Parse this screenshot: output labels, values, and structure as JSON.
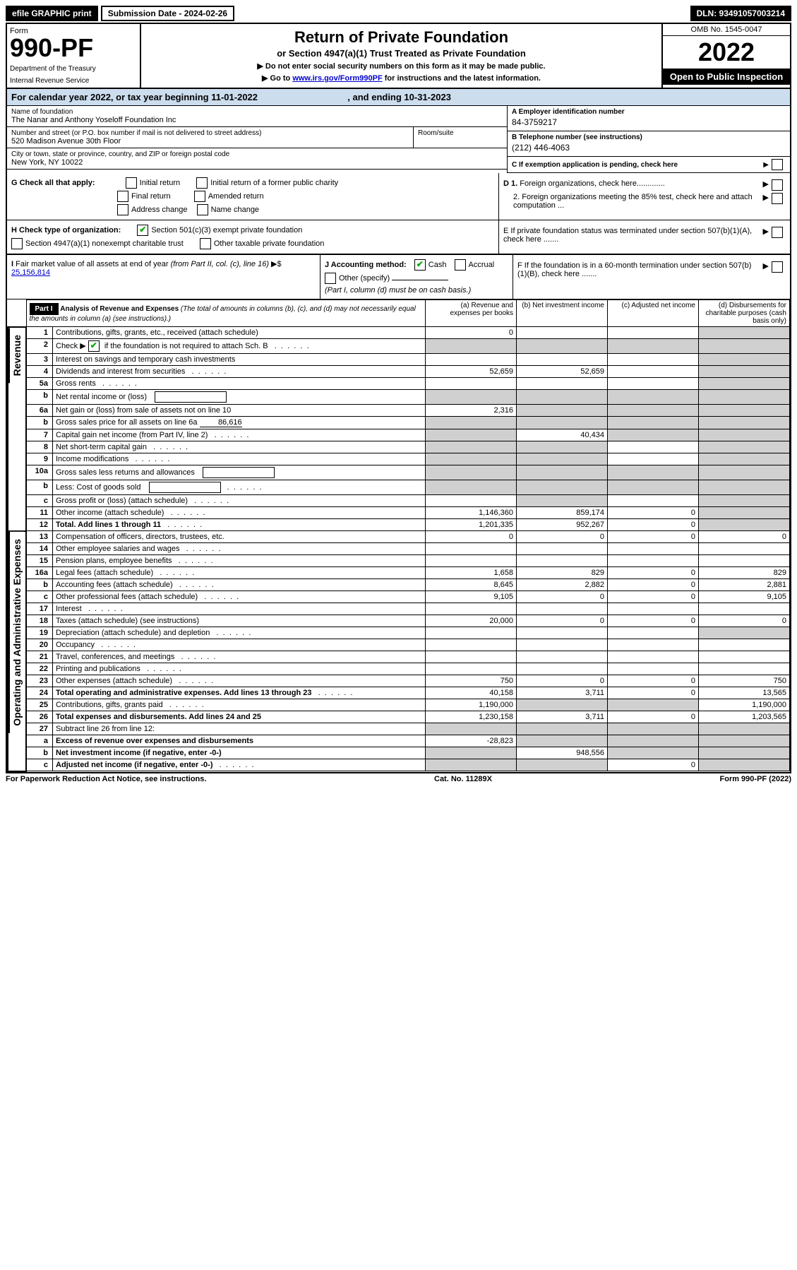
{
  "topbar": {
    "efile": "efile GRAPHIC print",
    "submission_label": "Submission Date - 2024-02-26",
    "dln": "DLN: 93491057003214"
  },
  "header": {
    "form": "Form",
    "form_num": "990-PF",
    "dept1": "Department of the Treasury",
    "dept2": "Internal Revenue Service",
    "title": "Return of Private Foundation",
    "sub1": "or Section 4947(a)(1) Trust Treated as Private Foundation",
    "sub2a": "▶ Do not enter social security numbers on this form as it may be made public.",
    "sub2b": "▶ Go to ",
    "sub2b_link": "www.irs.gov/Form990PF",
    "sub2c": " for instructions and the latest information.",
    "omb": "OMB No. 1545-0047",
    "year": "2022",
    "open_pub": "Open to Public Inspection"
  },
  "calyear": {
    "text1": "For calendar year 2022, or tax year beginning 11-01-2022",
    "text2": ", and ending 10-31-2023"
  },
  "info": {
    "name_label": "Name of foundation",
    "name": "The Nanar and Anthony Yoseloff Foundation Inc",
    "addr_label": "Number and street (or P.O. box number if mail is not delivered to street address)",
    "addr": "520 Madison Avenue 30th Floor",
    "room_label": "Room/suite",
    "city_label": "City or town, state or province, country, and ZIP or foreign postal code",
    "city": "New York, NY  10022",
    "ein_label": "A Employer identification number",
    "ein": "84-3759217",
    "tel_label": "B Telephone number (see instructions)",
    "tel": "(212) 446-4063",
    "c_label": "C If exemption application is pending, check here"
  },
  "checks": {
    "g_label": "G Check all that apply:",
    "g_opts": [
      "Initial return",
      "Initial return of a former public charity",
      "Final return",
      "Amended return",
      "Address change",
      "Name change"
    ],
    "h_label": "H Check type of organization:",
    "h1": "Section 501(c)(3) exempt private foundation",
    "h2": "Section 4947(a)(1) nonexempt charitable trust",
    "h3": "Other taxable private foundation",
    "i_label": "I Fair market value of all assets at end of year (from Part II, col. (c), line 16) ▶$ ",
    "i_val": "25,156,814",
    "j_label": "J Accounting method:",
    "j_cash": "Cash",
    "j_accrual": "Accrual",
    "j_other": "Other (specify)",
    "j_note": "(Part I, column (d) must be on cash basis.)",
    "d1": "D 1. Foreign organizations, check here.............",
    "d2": "2. Foreign organizations meeting the 85% test, check here and attach computation ...",
    "e": "E  If private foundation status was terminated under section 507(b)(1)(A), check here .......",
    "f": "F  If the foundation is in a 60-month termination under section 507(b)(1)(B), check here .......",
    "arrow": "▶"
  },
  "part1": {
    "label": "Part I",
    "title": "Analysis of Revenue and Expenses",
    "title_note": " (The total of amounts in columns (b), (c), and (d) may not necessarily equal the amounts in column (a) (see instructions).)",
    "col_a": "(a)    Revenue and expenses per books",
    "col_b": "(b)    Net investment income",
    "col_c": "(c)   Adjusted net income",
    "col_d": "(d)   Disbursements for charitable purposes (cash basis only)"
  },
  "side_labels": {
    "revenue": "Revenue",
    "expenses": "Operating and Administrative Expenses"
  },
  "rows": [
    {
      "n": "1",
      "desc": "Contributions, gifts, grants, etc., received (attach schedule)",
      "a": "0",
      "b": "",
      "c": "",
      "d": "",
      "shade": [
        "d"
      ]
    },
    {
      "n": "2",
      "desc": "Check ▶ ☑ if the foundation is not required to attach Sch. B",
      "a": "",
      "b": "",
      "c": "",
      "d": "",
      "shade": [
        "a",
        "b",
        "c",
        "d"
      ],
      "checkgreen": true,
      "dots": true
    },
    {
      "n": "3",
      "desc": "Interest on savings and temporary cash investments",
      "a": "",
      "b": "",
      "c": "",
      "d": "",
      "shade": [
        "d"
      ]
    },
    {
      "n": "4",
      "desc": "Dividends and interest from securities",
      "a": "52,659",
      "b": "52,659",
      "c": "",
      "d": "",
      "shade": [
        "d"
      ],
      "dots": true
    },
    {
      "n": "5a",
      "desc": "Gross rents",
      "a": "",
      "b": "",
      "c": "",
      "d": "",
      "shade": [
        "d"
      ],
      "dots": true
    },
    {
      "n": "b",
      "desc": "Net rental income or (loss)",
      "a": "",
      "b": "",
      "c": "",
      "d": "",
      "shade": [
        "a",
        "b",
        "c",
        "d"
      ],
      "inline_box": true
    },
    {
      "n": "6a",
      "desc": "Net gain or (loss) from sale of assets not on line 10",
      "a": "2,316",
      "b": "",
      "c": "",
      "d": "",
      "shade": [
        "b",
        "c",
        "d"
      ]
    },
    {
      "n": "b",
      "desc": "Gross sales price for all assets on line 6a",
      "a": "",
      "b": "",
      "c": "",
      "d": "",
      "shade": [
        "a",
        "b",
        "c",
        "d"
      ],
      "inline_val": "86,616"
    },
    {
      "n": "7",
      "desc": "Capital gain net income (from Part IV, line 2)",
      "a": "",
      "b": "40,434",
      "c": "",
      "d": "",
      "shade": [
        "a",
        "c",
        "d"
      ],
      "dots": true
    },
    {
      "n": "8",
      "desc": "Net short-term capital gain",
      "a": "",
      "b": "",
      "c": "",
      "d": "",
      "shade": [
        "a",
        "b",
        "d"
      ],
      "dots": true
    },
    {
      "n": "9",
      "desc": "Income modifications",
      "a": "",
      "b": "",
      "c": "",
      "d": "",
      "shade": [
        "a",
        "b",
        "d"
      ],
      "dots": true
    },
    {
      "n": "10a",
      "desc": "Gross sales less returns and allowances",
      "a": "",
      "b": "",
      "c": "",
      "d": "",
      "shade": [
        "a",
        "b",
        "c",
        "d"
      ],
      "inline_box": true
    },
    {
      "n": "b",
      "desc": "Less: Cost of goods sold",
      "a": "",
      "b": "",
      "c": "",
      "d": "",
      "shade": [
        "a",
        "b",
        "c",
        "d"
      ],
      "inline_box": true,
      "dots": true
    },
    {
      "n": "c",
      "desc": "Gross profit or (loss) (attach schedule)",
      "a": "",
      "b": "",
      "c": "",
      "d": "",
      "shade": [
        "b",
        "d"
      ],
      "dots": true
    },
    {
      "n": "11",
      "desc": "Other income (attach schedule)",
      "a": "1,146,360",
      "b": "859,174",
      "c": "0",
      "d": "",
      "shade": [
        "d"
      ],
      "dots": true
    },
    {
      "n": "12",
      "desc": "Total. Add lines 1 through 11",
      "a": "1,201,335",
      "b": "952,267",
      "c": "0",
      "d": "",
      "shade": [
        "d"
      ],
      "bold": true,
      "dots": true
    }
  ],
  "exp_rows": [
    {
      "n": "13",
      "desc": "Compensation of officers, directors, trustees, etc.",
      "a": "0",
      "b": "0",
      "c": "0",
      "d": "0"
    },
    {
      "n": "14",
      "desc": "Other employee salaries and wages",
      "a": "",
      "b": "",
      "c": "",
      "d": "",
      "dots": true
    },
    {
      "n": "15",
      "desc": "Pension plans, employee benefits",
      "a": "",
      "b": "",
      "c": "",
      "d": "",
      "dots": true
    },
    {
      "n": "16a",
      "desc": "Legal fees (attach schedule)",
      "a": "1,658",
      "b": "829",
      "c": "0",
      "d": "829",
      "dots": true
    },
    {
      "n": "b",
      "desc": "Accounting fees (attach schedule)",
      "a": "8,645",
      "b": "2,882",
      "c": "0",
      "d": "2,881",
      "dots": true
    },
    {
      "n": "c",
      "desc": "Other professional fees (attach schedule)",
      "a": "9,105",
      "b": "0",
      "c": "0",
      "d": "9,105",
      "dots": true
    },
    {
      "n": "17",
      "desc": "Interest",
      "a": "",
      "b": "",
      "c": "",
      "d": "",
      "dots": true
    },
    {
      "n": "18",
      "desc": "Taxes (attach schedule) (see instructions)",
      "a": "20,000",
      "b": "0",
      "c": "0",
      "d": "0"
    },
    {
      "n": "19",
      "desc": "Depreciation (attach schedule) and depletion",
      "a": "",
      "b": "",
      "c": "",
      "d": "",
      "shade": [
        "d"
      ],
      "dots": true
    },
    {
      "n": "20",
      "desc": "Occupancy",
      "a": "",
      "b": "",
      "c": "",
      "d": "",
      "dots": true
    },
    {
      "n": "21",
      "desc": "Travel, conferences, and meetings",
      "a": "",
      "b": "",
      "c": "",
      "d": "",
      "dots": true
    },
    {
      "n": "22",
      "desc": "Printing and publications",
      "a": "",
      "b": "",
      "c": "",
      "d": "",
      "dots": true
    },
    {
      "n": "23",
      "desc": "Other expenses (attach schedule)",
      "a": "750",
      "b": "0",
      "c": "0",
      "d": "750",
      "dots": true
    },
    {
      "n": "24",
      "desc": "Total operating and administrative expenses. Add lines 13 through 23",
      "a": "40,158",
      "b": "3,711",
      "c": "0",
      "d": "13,565",
      "bold": true,
      "dots": true
    },
    {
      "n": "25",
      "desc": "Contributions, gifts, grants paid",
      "a": "1,190,000",
      "b": "",
      "c": "",
      "d": "1,190,000",
      "shade": [
        "b",
        "c"
      ],
      "dots": true
    },
    {
      "n": "26",
      "desc": "Total expenses and disbursements. Add lines 24 and 25",
      "a": "1,230,158",
      "b": "3,711",
      "c": "0",
      "d": "1,203,565",
      "bold": true
    },
    {
      "n": "27",
      "desc": "Subtract line 26 from line 12:",
      "a": "",
      "b": "",
      "c": "",
      "d": "",
      "shade": [
        "a",
        "b",
        "c",
        "d"
      ]
    },
    {
      "n": "a",
      "desc": "Excess of revenue over expenses and disbursements",
      "a": "-28,823",
      "b": "",
      "c": "",
      "d": "",
      "shade": [
        "b",
        "c",
        "d"
      ],
      "bold": true
    },
    {
      "n": "b",
      "desc": "Net investment income (if negative, enter -0-)",
      "a": "",
      "b": "948,556",
      "c": "",
      "d": "",
      "shade": [
        "a",
        "c",
        "d"
      ],
      "bold": true
    },
    {
      "n": "c",
      "desc": "Adjusted net income (if negative, enter -0-)",
      "a": "",
      "b": "",
      "c": "0",
      "d": "",
      "shade": [
        "a",
        "b",
        "d"
      ],
      "bold": true,
      "dots": true
    }
  ],
  "footer": {
    "left": "For Paperwork Reduction Act Notice, see instructions.",
    "mid": "Cat. No. 11289X",
    "right": "Form 990-PF (2022)"
  }
}
